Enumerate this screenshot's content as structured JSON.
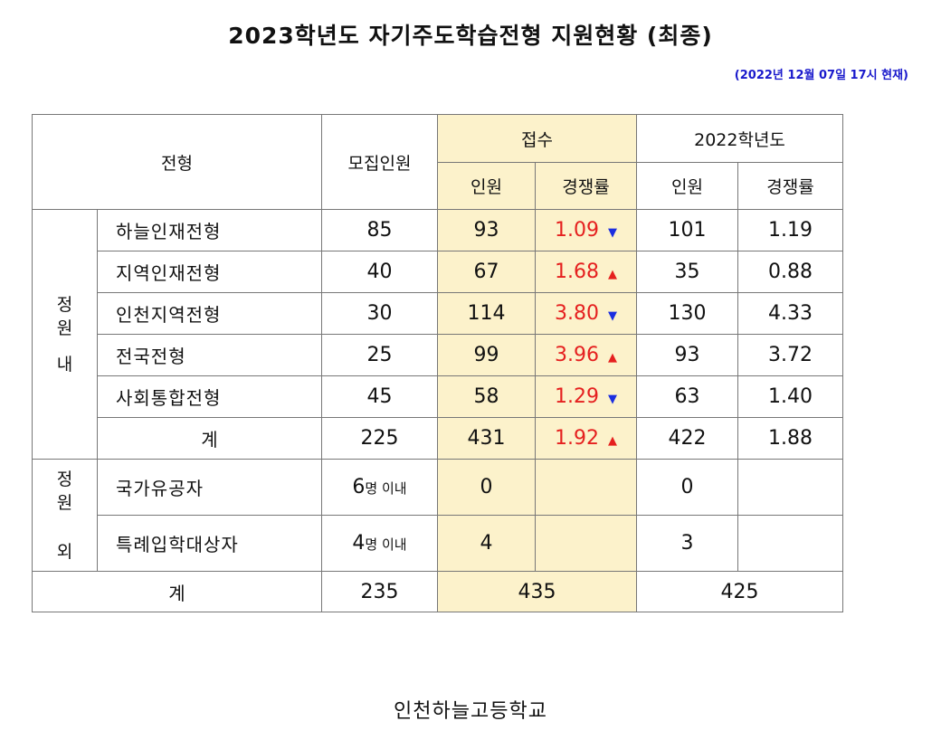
{
  "title": "2023학년도 자기주도학습전형 지원현황 (최종)",
  "as_of": "(2022년 12월 07일 17시 현재)",
  "headers": {
    "type": "전형",
    "quota": "모집인원",
    "received": "접수",
    "prev_year": "2022학년도",
    "count": "인원",
    "ratio": "경쟁률"
  },
  "groups": {
    "in_quota": [
      "정",
      "원",
      "내"
    ],
    "out_quota": [
      "정",
      "원",
      "외"
    ]
  },
  "rows_in": [
    {
      "name": "하늘인재전형",
      "quota": "85",
      "count": "93",
      "ratio": "1.09",
      "trend": "▼",
      "prev_count": "101",
      "prev_ratio": "1.19"
    },
    {
      "name": "지역인재전형",
      "quota": "40",
      "count": "67",
      "ratio": "1.68",
      "trend": "▲",
      "prev_count": "35",
      "prev_ratio": "0.88"
    },
    {
      "name": "인천지역전형",
      "quota": "30",
      "count": "114",
      "ratio": "3.80",
      "trend": "▼",
      "prev_count": "130",
      "prev_ratio": "4.33"
    },
    {
      "name": "전국전형",
      "quota": "25",
      "count": "99",
      "ratio": "3.96",
      "trend": "▲",
      "prev_count": "93",
      "prev_ratio": "3.72"
    },
    {
      "name": "사회통합전형",
      "quota": "45",
      "count": "58",
      "ratio": "1.29",
      "trend": "▼",
      "prev_count": "63",
      "prev_ratio": "1.40"
    }
  ],
  "subtotal": {
    "name": "계",
    "quota": "225",
    "count": "431",
    "ratio": "1.92",
    "trend": "▲",
    "prev_count": "422",
    "prev_ratio": "1.88"
  },
  "rows_out": [
    {
      "name": "국가유공자",
      "quota_num": "6",
      "quota_unit": "명 이내",
      "count": "0",
      "prev_count": "0"
    },
    {
      "name": "특례입학대상자",
      "quota_num": "4",
      "quota_unit": "명 이내",
      "count": "4",
      "prev_count": "3"
    }
  ],
  "total": {
    "name": "계",
    "quota": "235",
    "count": "435",
    "prev_count": "425"
  },
  "footer": "인천하늘고등학교",
  "colors": {
    "highlight": "#fcf2cb",
    "rate": "#e5201f",
    "down_arrow": "#1b2ee0",
    "up_arrow": "#e5201f",
    "as_of": "#1a1acc"
  }
}
